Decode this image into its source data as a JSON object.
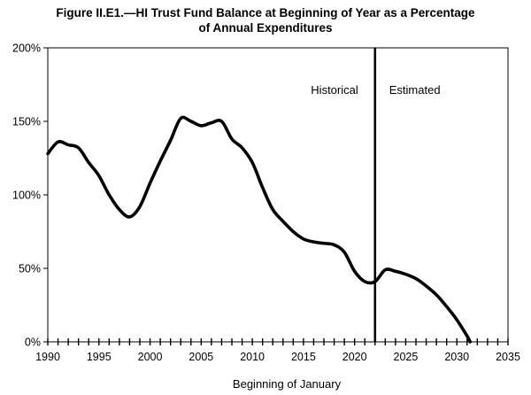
{
  "chart_data": {
    "type": "line",
    "title_line1": "Figure II.E1.—HI Trust Fund Balance at Beginning of Year as a Percentage",
    "title_line2": "of Annual Expenditures",
    "xlabel": "Beginning of January",
    "ylabel": "",
    "xlim": [
      1990,
      2035
    ],
    "ylim": [
      0,
      200
    ],
    "x_ticks": [
      "1990",
      "1995",
      "2000",
      "2005",
      "2010",
      "2015",
      "2020",
      "2025",
      "2030",
      "2035"
    ],
    "y_ticks": [
      "0%",
      "50%",
      "100%",
      "150%",
      "200%"
    ],
    "divider_year": 2022,
    "annotations": {
      "historical": "Historical",
      "estimated": "Estimated"
    },
    "grid": false,
    "line_color": "#000000",
    "series": [
      {
        "points": [
          [
            1990,
            128
          ],
          [
            1991,
            136
          ],
          [
            1992,
            134
          ],
          [
            1993,
            132
          ],
          [
            1994,
            122
          ],
          [
            1995,
            113
          ],
          [
            1996,
            100
          ],
          [
            1997,
            90
          ],
          [
            1998,
            85
          ],
          [
            1999,
            92
          ],
          [
            2000,
            108
          ],
          [
            2001,
            123
          ],
          [
            2002,
            137
          ],
          [
            2003,
            152
          ],
          [
            2004,
            150
          ],
          [
            2005,
            147
          ],
          [
            2006,
            149
          ],
          [
            2007,
            150
          ],
          [
            2008,
            138
          ],
          [
            2009,
            132
          ],
          [
            2010,
            122
          ],
          [
            2011,
            105
          ],
          [
            2012,
            90
          ],
          [
            2013,
            82
          ],
          [
            2014,
            75
          ],
          [
            2015,
            70
          ],
          [
            2016,
            68
          ],
          [
            2017,
            67
          ],
          [
            2018,
            66
          ],
          [
            2019,
            61
          ],
          [
            2020,
            48
          ],
          [
            2021,
            41
          ],
          [
            2022,
            41
          ],
          [
            2023,
            49
          ],
          [
            2024,
            48
          ],
          [
            2025,
            46
          ],
          [
            2026,
            43
          ],
          [
            2027,
            38
          ],
          [
            2028,
            32
          ],
          [
            2029,
            24
          ],
          [
            2030,
            15
          ],
          [
            2031,
            4
          ],
          [
            2031.3,
            0
          ]
        ]
      }
    ]
  }
}
